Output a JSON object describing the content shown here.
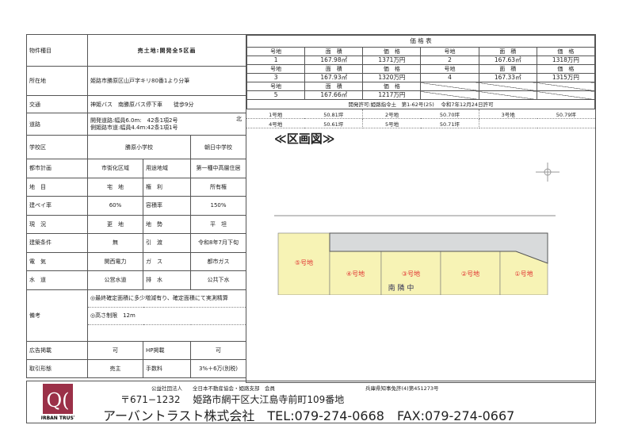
{
  "title": "売土地:開発全5区画",
  "rows": {
    "type_label": "物件種目",
    "location_label": "所在地",
    "location": "姫路市勝原区山戸字キリ80番1より分筆",
    "transport_label": "交通",
    "transport": "神姫バス　南勝原バス停下車　　徒歩9分",
    "road_label": "道路",
    "road1": "開発道路:幅員6.0m:　42条1項2号",
    "road2": "側姫路市道:幅員4.4m:42条1項1号",
    "road_north": "北",
    "school_label": "学校区",
    "school_elem": "勝原小学校",
    "school_mid": "朝日中学校",
    "grid": [
      [
        "都市計画",
        "市街化区域",
        "用途地域",
        "第一種中高層住居"
      ],
      [
        "地　目",
        "宅　地",
        "権　利",
        "所有権"
      ],
      [
        "建ペイ率",
        "60%",
        "容積率",
        "150%"
      ],
      [
        "現　況",
        "更　地",
        "地　勢",
        "平　坦"
      ],
      [
        "建築条件",
        "無",
        "引　渡",
        "令和8年7月下旬"
      ],
      [
        "電　気",
        "関西電力",
        "ガ　ス",
        "都市ガス"
      ],
      [
        "水　道",
        "公営水道",
        "排　水",
        "公共下水"
      ]
    ],
    "remarks_label": "備考",
    "remarks": [
      "◎最終確定面積に多少増減有り、確定面積にて実測精算",
      "◎高さ制限　12m"
    ],
    "bottom": [
      [
        "広告掲載",
        "可",
        "HP掲載",
        "可"
      ],
      [
        "取引形態",
        "売主",
        "手数料",
        "3%＋6万(別税)"
      ]
    ]
  },
  "price_table": {
    "title": "価 格 表",
    "headers": [
      "号地",
      "面　積",
      "価　格"
    ],
    "lots": [
      {
        "no": "1",
        "area": "167.98㎡",
        "price": "1371万円"
      },
      {
        "no": "2",
        "area": "167.63㎡",
        "price": "1318万円"
      },
      {
        "no": "3",
        "area": "167.93㎡",
        "price": "1320万円"
      },
      {
        "no": "4",
        "area": "167.33㎡",
        "price": "1315万円"
      },
      {
        "no": "5",
        "area": "167.66㎡",
        "price": "1217万円"
      }
    ],
    "permit": "開発許可:姫路指令土　第1-62号(25)　 令和7年12月24日許可",
    "tsubo": [
      [
        "1号地",
        "50.81坪"
      ],
      [
        "2号地",
        "50.70坪"
      ],
      [
        "3号地",
        "50.79坪"
      ],
      [
        "4号地",
        "50.61坪"
      ],
      [
        "5号地",
        "50.71坪"
      ]
    ]
  },
  "map": {
    "heading": "≪区画図≫",
    "lots": [
      "⑤号地",
      "④号地",
      "③号地",
      "②号地",
      "①号地"
    ],
    "handwriting": "南 隣 中",
    "lot_color": "#f7f3b5",
    "label_color": "#e03030"
  },
  "footer": {
    "assoc": "公益社団法人　　全日本不動産協会・姫路支部　会員",
    "license": "兵庫県知事免許(4)第451273号",
    "address": "〒671−1232　 姫路市網干区大江島寺前町109番地",
    "company": "アーバントラスト株式会社",
    "tel": "TEL:079-274-0668",
    "fax": "FAX:079-274-0667",
    "logo_text": "URBAN TRUST",
    "logo_color": "#9b3048"
  }
}
